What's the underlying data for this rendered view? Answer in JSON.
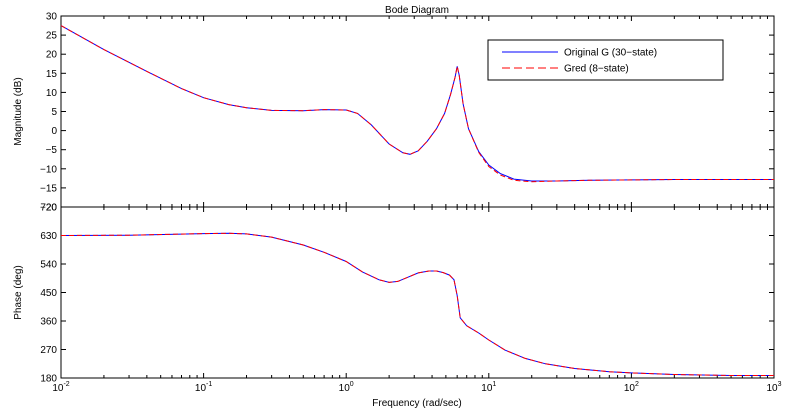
{
  "colors": {
    "original": "#0000ff",
    "reduced": "#ff0000",
    "axes": "#000000",
    "background": "#ffffff"
  },
  "chart_data": {
    "type": "line",
    "title": "Bode Diagram",
    "xlabel": "Frequency  (rad/sec)",
    "x_scale": "log",
    "xlim": [
      0.01,
      1000
    ],
    "x_tick_labels": [
      {
        "x": 0.01,
        "base": "10",
        "exp": "-2"
      },
      {
        "x": 0.1,
        "base": "10",
        "exp": "-1"
      },
      {
        "x": 1,
        "base": "10",
        "exp": "0"
      },
      {
        "x": 10,
        "base": "10",
        "exp": "1"
      },
      {
        "x": 100,
        "base": "10",
        "exp": "2"
      },
      {
        "x": 1000,
        "base": "10",
        "exp": "3"
      }
    ],
    "legend": {
      "position": "top-right",
      "entries": [
        "Original G (30−state)",
        "Gred (8−state)"
      ]
    },
    "panels": [
      {
        "name": "magnitude",
        "ylabel": "Magnitude (dB)",
        "ylim": [
          -20,
          30
        ],
        "y_ticks": [
          -20,
          -15,
          -10,
          -5,
          0,
          5,
          10,
          15,
          20,
          25,
          30
        ],
        "y_tick_labels": [
          "−20",
          "−15",
          "−10",
          "−5",
          "0",
          "5",
          "10",
          "15",
          "20",
          "25",
          "30"
        ],
        "series": [
          {
            "name": "Original G (30−state)",
            "style": "solid",
            "x": [
              0.01,
              0.02,
              0.04,
              0.07,
              0.1,
              0.15,
              0.2,
              0.3,
              0.5,
              0.7,
              1.0,
              1.2,
              1.5,
              2.0,
              2.5,
              2.8,
              3.2,
              3.7,
              4.3,
              4.9,
              5.4,
              5.8,
              6.0,
              6.2,
              6.6,
              7.2,
              8.5,
              10,
              12,
              15,
              20,
              30,
              50,
              100,
              200,
              500,
              1000
            ],
            "y": [
              27.5,
              21.2,
              15.5,
              11.0,
              8.6,
              6.8,
              6.0,
              5.3,
              5.2,
              5.5,
              5.4,
              4.5,
              1.5,
              -3.5,
              -5.8,
              -6.2,
              -5.3,
              -2.8,
              0.5,
              4.5,
              9.5,
              14.0,
              16.8,
              14.5,
              7.0,
              0.5,
              -5.5,
              -9.0,
              -11.2,
              -12.7,
              -13.2,
              -13.2,
              -13.0,
              -12.9,
              -12.8,
              -12.8,
              -12.8
            ]
          },
          {
            "name": "Gred (8−state)",
            "style": "dashed",
            "x": [
              0.01,
              0.02,
              0.04,
              0.07,
              0.1,
              0.15,
              0.2,
              0.3,
              0.5,
              0.7,
              1.0,
              1.2,
              1.5,
              2.0,
              2.5,
              2.8,
              3.2,
              3.7,
              4.3,
              4.9,
              5.4,
              5.8,
              6.0,
              6.2,
              6.6,
              7.2,
              8.5,
              10,
              12,
              15,
              20,
              30,
              50,
              100,
              200,
              500,
              1000
            ],
            "y": [
              27.5,
              21.2,
              15.5,
              11.0,
              8.6,
              6.8,
              6.0,
              5.3,
              5.2,
              5.5,
              5.4,
              4.5,
              1.5,
              -3.5,
              -5.8,
              -6.2,
              -5.3,
              -2.8,
              0.5,
              4.5,
              9.5,
              14.0,
              16.8,
              14.5,
              7.0,
              0.5,
              -5.7,
              -9.4,
              -11.6,
              -13.0,
              -13.4,
              -13.2,
              -13.0,
              -12.9,
              -12.8,
              -12.8,
              -12.8
            ]
          }
        ]
      },
      {
        "name": "phase",
        "ylabel": "Phase (deg)",
        "ylim": [
          180,
          720
        ],
        "y_ticks": [
          180,
          270,
          360,
          450,
          540,
          630,
          720
        ],
        "y_tick_labels": [
          "180",
          "270",
          "360",
          "450",
          "540",
          "630",
          "720"
        ],
        "series": [
          {
            "name": "Original G (30−state)",
            "style": "solid",
            "x": [
              0.01,
              0.03,
              0.1,
              0.15,
              0.2,
              0.3,
              0.5,
              0.7,
              1.0,
              1.3,
              1.7,
              2.0,
              2.3,
              2.7,
              3.2,
              3.8,
              4.3,
              4.8,
              5.3,
              5.7,
              6.0,
              6.3,
              7.0,
              8.5,
              10,
              13,
              18,
              25,
              40,
              70,
              100,
              200,
              500,
              1000
            ],
            "y": [
              630,
              631,
              636,
              637,
              635,
              625,
              600,
              577,
              548,
              515,
              490,
              482,
              485,
              498,
              512,
              518,
              518,
              513,
              505,
              490,
              440,
              370,
              345,
              322,
              300,
              268,
              242,
              225,
              210,
              200,
              196,
              191,
              188,
              188
            ]
          },
          {
            "name": "Gred (8−state)",
            "style": "dashed",
            "x": [
              0.01,
              0.03,
              0.1,
              0.15,
              0.2,
              0.3,
              0.5,
              0.7,
              1.0,
              1.3,
              1.7,
              2.0,
              2.3,
              2.7,
              3.2,
              3.8,
              4.3,
              4.8,
              5.3,
              5.7,
              6.0,
              6.3,
              7.0,
              8.5,
              10,
              13,
              18,
              25,
              40,
              70,
              100,
              200,
              500,
              1000
            ],
            "y": [
              630,
              631,
              636,
              637,
              635,
              625,
              600,
              577,
              548,
              515,
              490,
              482,
              485,
              498,
              512,
              518,
              518,
              513,
              505,
              490,
              440,
              370,
              345,
              322,
              300,
              268,
              242,
              225,
              210,
              200,
              196,
              191,
              188,
              188
            ]
          }
        ]
      }
    ]
  }
}
